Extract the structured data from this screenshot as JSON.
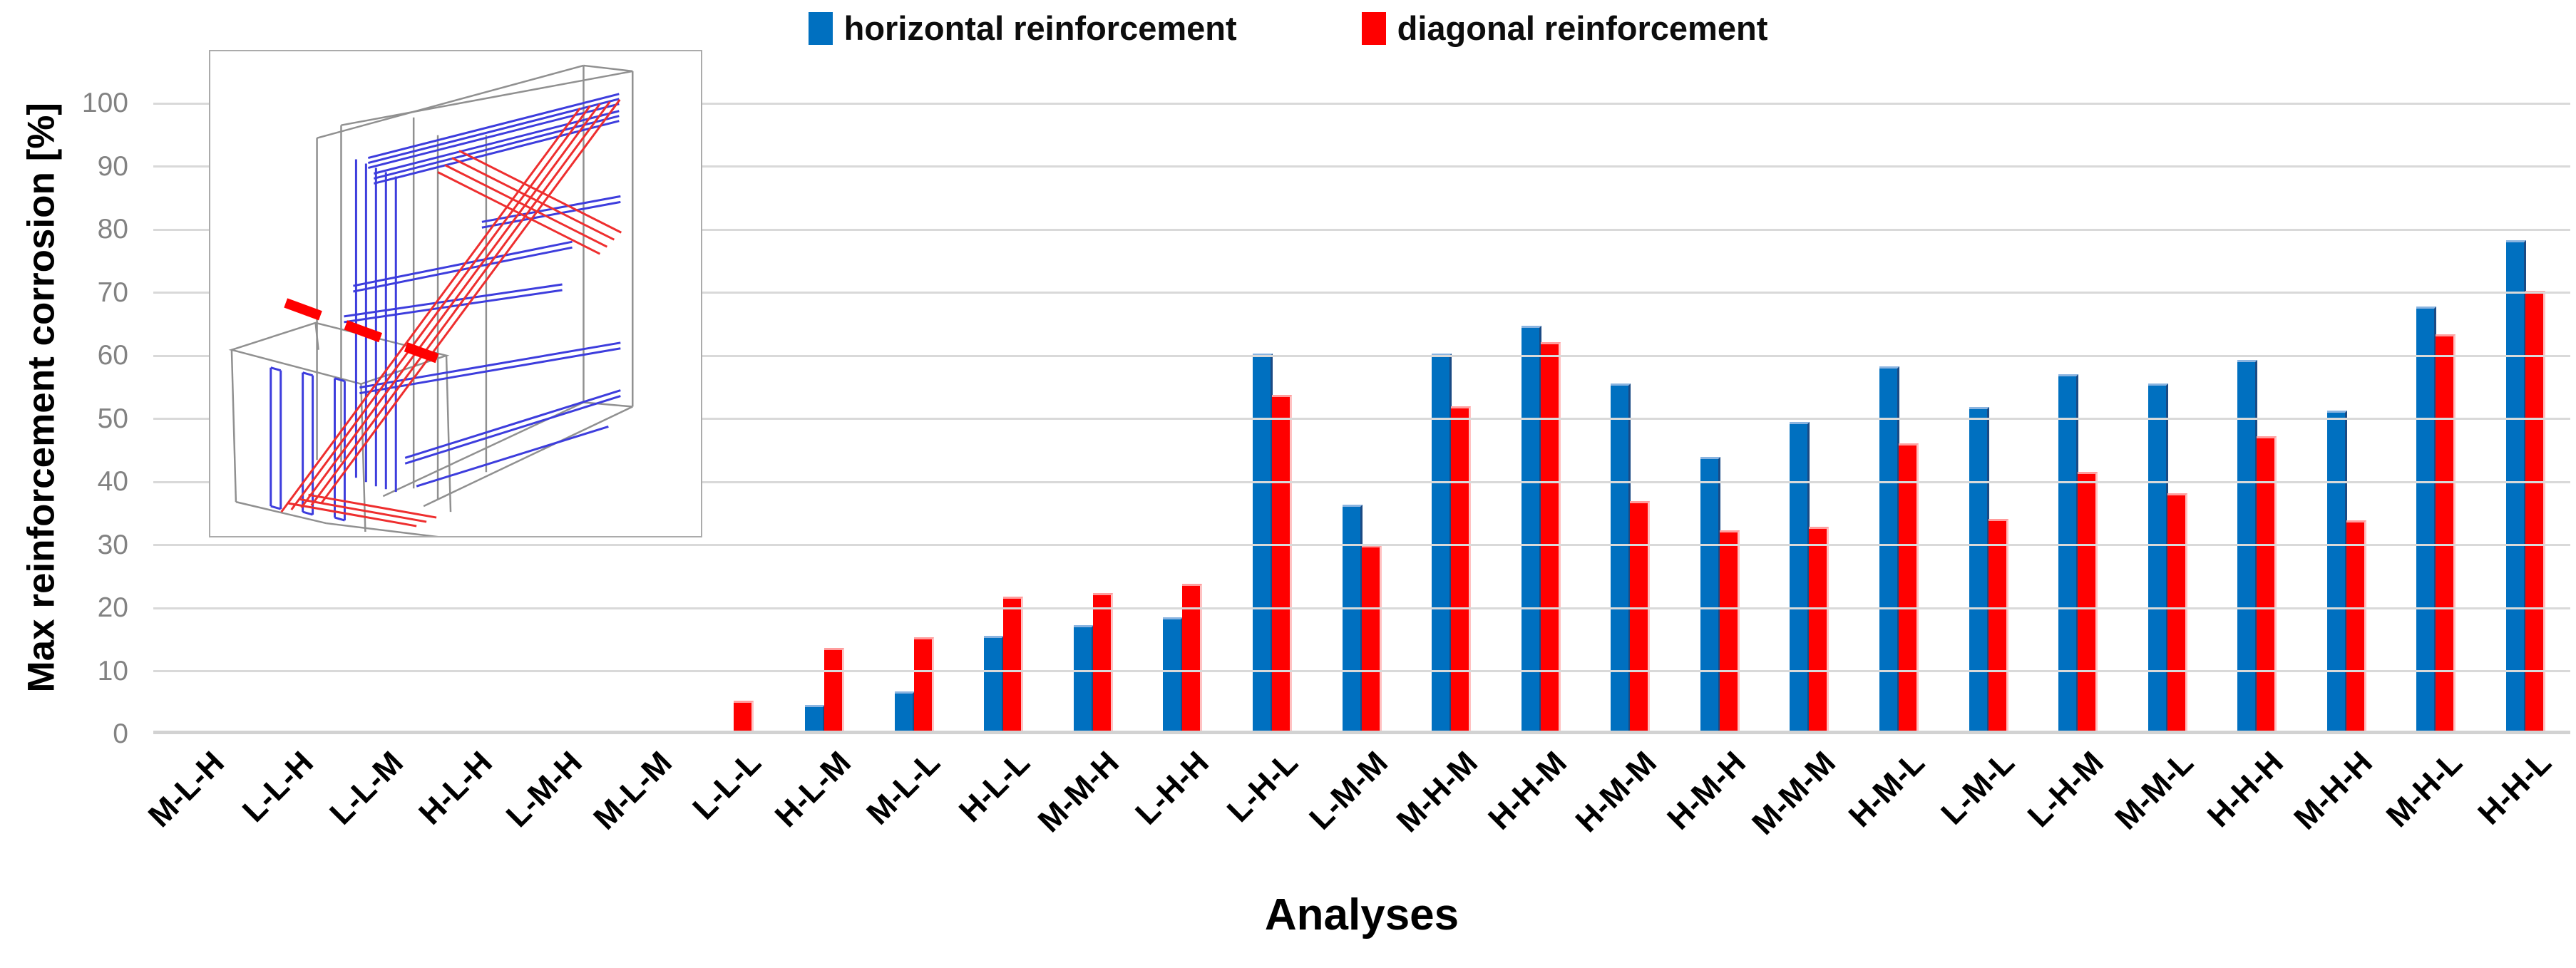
{
  "page": {
    "background": "#FFFFFF"
  },
  "legend": {
    "items": [
      {
        "label": "horizontal reinforcement",
        "color": "#0070C0"
      },
      {
        "label": "diagonal reinforcement",
        "color": "#FF0000"
      }
    ]
  },
  "axes": {
    "y": {
      "title": "Max reinforcement corrosion [%]",
      "min": 0,
      "max": 100,
      "tick_step": 10
    },
    "x": {
      "title": "Analyses"
    }
  },
  "inset_figure": {
    "wireframe_color": "#909090",
    "horizontal_rebar_color": "#3d3ddd",
    "diagonal_rebar_color": "#ee2e2e",
    "section_cut_color": "#ff0000"
  },
  "chart_data": {
    "type": "bar",
    "title": "",
    "categories": [
      "M-L-H",
      "L-L-H",
      "L-L-M",
      "H-L-H",
      "L-M-H",
      "M-L-M",
      "L-L-L",
      "H-L-M",
      "M-L-L",
      "H-L-L",
      "M-M-H",
      "L-H-H",
      "L-H-L",
      "L-M-M",
      "M-H-M",
      "H-H-M",
      "H-M-M",
      "H-M-H",
      "M-M-M",
      "H-M-L",
      "L-M-L",
      "L-H-M",
      "M-M-L",
      "H-H-H",
      "M-H-H",
      "M-H-L",
      "H-H-L"
    ],
    "series": [
      {
        "name": "horizontal reinforcement",
        "color": "#0070C0",
        "values": [
          0,
          0,
          0,
          0,
          0,
          0,
          0,
          4.3,
          6.4,
          15.3,
          17.0,
          18.2,
          60.0,
          36.0,
          60.0,
          64.4,
          55.3,
          43.6,
          49.2,
          58.0,
          51.5,
          56.7,
          55.3,
          59.0,
          51.0,
          67.5,
          78.0
        ]
      },
      {
        "name": "diagonal reinforcement",
        "color": "#FF0000",
        "values": [
          0,
          0,
          0,
          0,
          0,
          0,
          5.0,
          13.3,
          15.0,
          21.5,
          22.0,
          23.5,
          53.4,
          29.6,
          51.6,
          61.8,
          36.6,
          32.0,
          32.5,
          45.8,
          33.8,
          41.2,
          37.9,
          46.9,
          33.6,
          63.0,
          69.9
        ]
      }
    ],
    "xlabel": "Analyses",
    "ylabel": "Max reinforcement corrosion [%]",
    "ylim": [
      0,
      100
    ],
    "ytick_step": 10,
    "grid": true,
    "legend_position": "top-center"
  }
}
